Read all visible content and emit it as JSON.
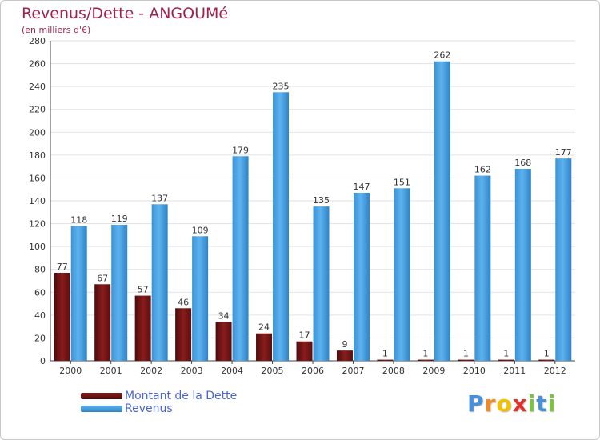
{
  "chart_data": {
    "type": "bar",
    "title": "Revenus/Dette - ANGOUMé",
    "subtitle": "(en milliers d'€)",
    "xlabel": "",
    "ylabel": "",
    "ylim": [
      0,
      280
    ],
    "yticks": [
      0,
      20,
      40,
      60,
      80,
      100,
      120,
      140,
      160,
      180,
      200,
      220,
      240,
      260,
      280
    ],
    "grid": true,
    "categories": [
      "2000",
      "2001",
      "2002",
      "2003",
      "2004",
      "2005",
      "2006",
      "2007",
      "2008",
      "2009",
      "2010",
      "2011",
      "2012"
    ],
    "series": [
      {
        "name": "Montant de la Dette",
        "color": "#7a1a1a",
        "values": [
          77,
          67,
          57,
          46,
          34,
          24,
          17,
          9,
          1,
          1,
          1,
          1,
          1
        ]
      },
      {
        "name": "Revenus",
        "color": "#4aa3e3",
        "values": [
          118,
          119,
          137,
          109,
          179,
          235,
          135,
          147,
          151,
          262,
          162,
          168,
          177
        ]
      }
    ],
    "legend_position": "bottom-left"
  },
  "brand": {
    "letters": [
      "P",
      "r",
      "o",
      "x",
      "i",
      "t",
      "i"
    ],
    "colors": [
      "#4a90d9",
      "#f08a24",
      "#f2c200",
      "#e0322a",
      "#7cc243",
      "#4a90d9",
      "#7cc243"
    ]
  }
}
